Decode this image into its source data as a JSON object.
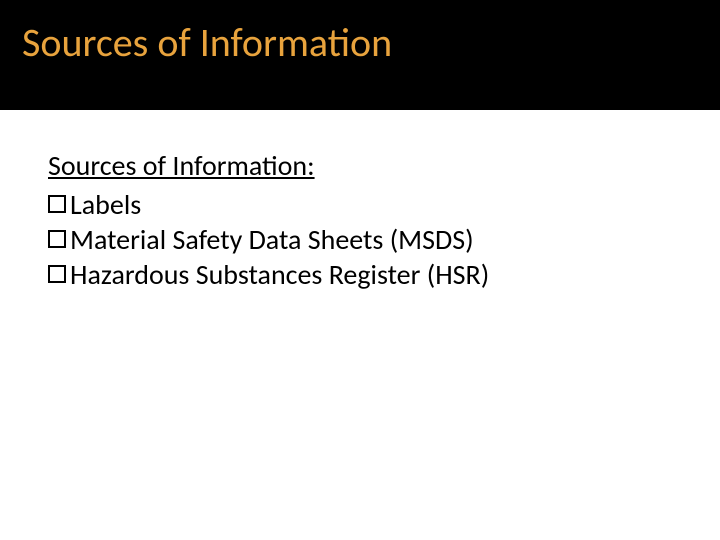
{
  "slide": {
    "title": "Sources of Information",
    "title_color": "#e8a33d",
    "title_bg": "#000000",
    "title_fontsize": 40,
    "subheading": "Sources of Information:",
    "subheading_fontsize": 28,
    "subheading_color": "#000000",
    "bullets": [
      {
        "text": "Labels"
      },
      {
        "text": "Material Safety Data Sheets (MSDS)"
      },
      {
        "text": "Hazardous Substances Register (HSR)"
      }
    ],
    "bullet_fontsize": 28,
    "bullet_color": "#000000",
    "bullet_marker_style": "hollow-square",
    "background_color": "#ffffff"
  }
}
